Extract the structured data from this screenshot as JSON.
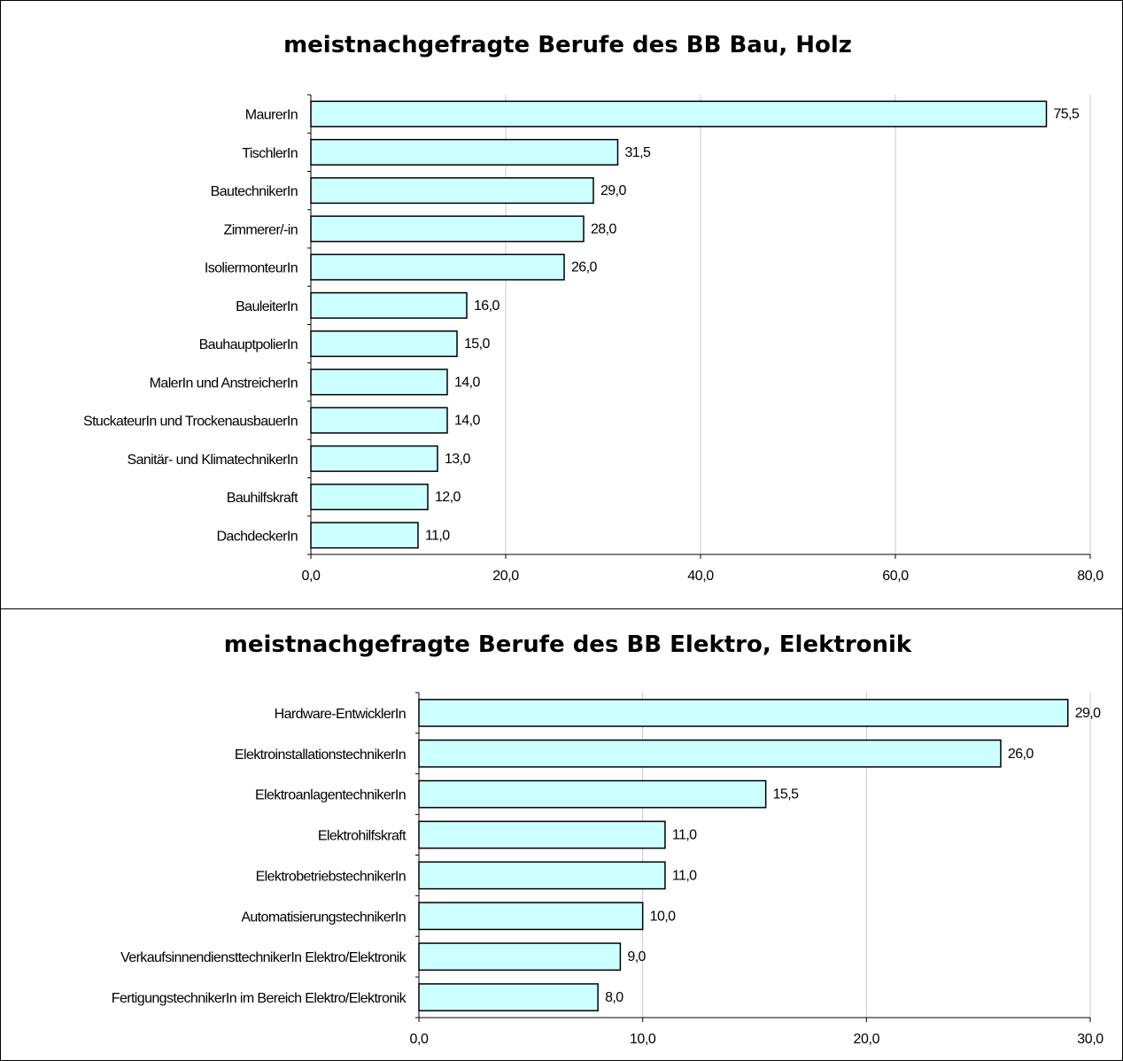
{
  "chart_data": [
    {
      "type": "bar",
      "orientation": "horizontal",
      "title": "meistnachgefragte Berufe des BB Bau, Holz",
      "categories": [
        "MaurerIn",
        "TischlerIn",
        "BautechnikerIn",
        "Zimmerer/-in",
        "IsoliermonteurIn",
        "BauleiterIn",
        "BauhauptpolierIn",
        "MalerIn und AnstreicherIn",
        "StuckateurIn und TrockenausbauerIn",
        "Sanitär- und KlimatechnikerIn",
        "Bauhilfskraft",
        "DachdeckerIn"
      ],
      "values": [
        75.5,
        31.5,
        29.0,
        28.0,
        26.0,
        16.0,
        15.0,
        14.0,
        14.0,
        13.0,
        12.0,
        11.0
      ],
      "value_labels": [
        "75,5",
        "31,5",
        "29,0",
        "28,0",
        "26,0",
        "16,0",
        "15,0",
        "14,0",
        "14,0",
        "13,0",
        "12,0",
        "11,0"
      ],
      "xlim": [
        0,
        80
      ],
      "xticks": [
        0,
        20,
        40,
        60,
        80
      ],
      "xtick_labels": [
        "0,0",
        "20,0",
        "40,0",
        "60,0",
        "80,0"
      ],
      "grid": "vertical",
      "bar_color": "#ccffff"
    },
    {
      "type": "bar",
      "orientation": "horizontal",
      "title": "meistnachgefragte Berufe des BB Elektro, Elektronik",
      "categories": [
        "Hardware-EntwicklerIn",
        "ElektroinstallationstechnikerIn",
        "ElektroanlagentechnikerIn",
        "Elektrohilfskraft",
        "ElektrobetriebstechnikerIn",
        "AutomatisierungstechnikerIn",
        "VerkaufsinnendiensttechnikerIn Elektro/Elektronik",
        "FertigungstechnikerIn im Bereich Elektro/Elektronik"
      ],
      "values": [
        29.0,
        26.0,
        15.5,
        11.0,
        11.0,
        10.0,
        9.0,
        8.0
      ],
      "value_labels": [
        "29,0",
        "26,0",
        "15,5",
        "11,0",
        "11,0",
        "10,0",
        "9,0",
        "8,0"
      ],
      "xlim": [
        0,
        30
      ],
      "xticks": [
        0,
        10,
        20,
        30
      ],
      "xtick_labels": [
        "0,0",
        "10,0",
        "20,0",
        "30,0"
      ],
      "grid": "vertical",
      "bar_color": "#ccffff"
    }
  ]
}
